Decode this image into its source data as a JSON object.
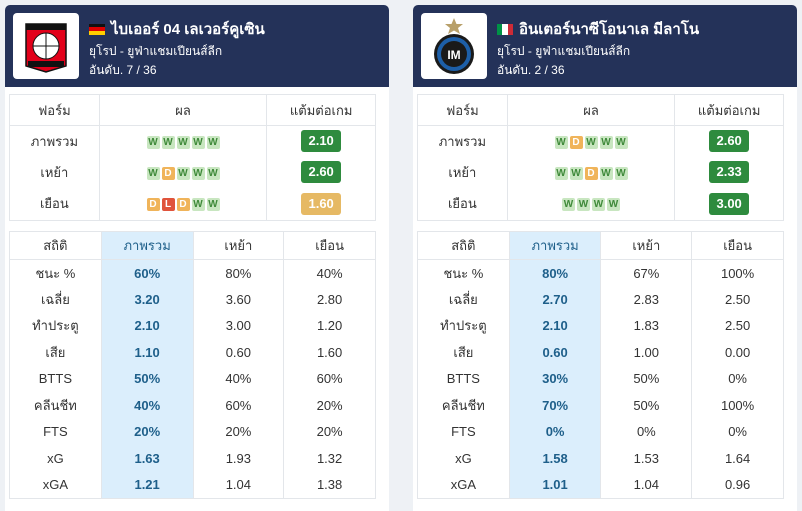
{
  "colors": {
    "header_bg": "#243259",
    "win": "#c8e6c0",
    "draw": "#f0b45a",
    "loss": "#e0533b",
    "ppg_green": "#2e8b3e",
    "ppg_amber": "#e6b964",
    "highlight_col": "#dbeefc"
  },
  "teams": [
    {
      "name": "ไบเออร์ 04 เลเวอร์คูเซิน",
      "flag": "germany-flag-icon",
      "logo": "bayer-leverkusen-crest",
      "league": "ยุโรป - ยูฟ่าแชมเปียนส์ลีก",
      "rank": "อันดับ. 7 / 36",
      "form_headers": {
        "form": "ฟอร์ม",
        "results": "ผล",
        "ppg": "แต้มต่อเกม"
      },
      "form_rows": [
        {
          "label": "ภาพรวม",
          "results": [
            "W",
            "W",
            "W",
            "W",
            "W"
          ],
          "ppg": "2.10",
          "ppg_color": "green"
        },
        {
          "label": "เหย้า",
          "results": [
            "W",
            "D",
            "W",
            "W",
            "W"
          ],
          "ppg": "2.60",
          "ppg_color": "green"
        },
        {
          "label": "เยือน",
          "results": [
            "D",
            "L",
            "D",
            "W",
            "W"
          ],
          "ppg": "1.60",
          "ppg_color": "amber"
        }
      ],
      "stats_headers": {
        "stat": "สถิติ",
        "overall": "ภาพรวม",
        "home": "เหย้า",
        "away": "เยือน"
      },
      "stats": [
        {
          "label": "ชนะ %",
          "overall": "60%",
          "home": "80%",
          "away": "40%"
        },
        {
          "label": "เฉลี่ย",
          "overall": "3.20",
          "home": "3.60",
          "away": "2.80"
        },
        {
          "label": "ทำประตู",
          "overall": "2.10",
          "home": "3.00",
          "away": "1.20"
        },
        {
          "label": "เสีย",
          "overall": "1.10",
          "home": "0.60",
          "away": "1.60"
        },
        {
          "label": "BTTS",
          "overall": "50%",
          "home": "40%",
          "away": "60%"
        },
        {
          "label": "คลีนชีท",
          "overall": "40%",
          "home": "60%",
          "away": "20%"
        },
        {
          "label": "FTS",
          "overall": "20%",
          "home": "20%",
          "away": "20%"
        },
        {
          "label": "xG",
          "overall": "1.63",
          "home": "1.93",
          "away": "1.32"
        },
        {
          "label": "xGA",
          "overall": "1.21",
          "home": "1.04",
          "away": "1.38"
        }
      ]
    },
    {
      "name": "อินเตอร์นาซีโอนาเล มีลาโน",
      "flag": "italy-flag-icon",
      "logo": "inter-milan-crest",
      "league": "ยุโรป - ยูฟ่าแชมเปียนส์ลีก",
      "rank": "อันดับ. 2 / 36",
      "form_headers": {
        "form": "ฟอร์ม",
        "results": "ผล",
        "ppg": "แต้มต่อเกม"
      },
      "form_rows": [
        {
          "label": "ภาพรวม",
          "results": [
            "W",
            "D",
            "W",
            "W",
            "W"
          ],
          "ppg": "2.60",
          "ppg_color": "green"
        },
        {
          "label": "เหย้า",
          "results": [
            "W",
            "W",
            "D",
            "W",
            "W"
          ],
          "ppg": "2.33",
          "ppg_color": "green"
        },
        {
          "label": "เยือน",
          "results": [
            "W",
            "W",
            "W",
            "W"
          ],
          "ppg": "3.00",
          "ppg_color": "green"
        }
      ],
      "stats_headers": {
        "stat": "สถิติ",
        "overall": "ภาพรวม",
        "home": "เหย้า",
        "away": "เยือน"
      },
      "stats": [
        {
          "label": "ชนะ %",
          "overall": "80%",
          "home": "67%",
          "away": "100%"
        },
        {
          "label": "เฉลี่ย",
          "overall": "2.70",
          "home": "2.83",
          "away": "2.50"
        },
        {
          "label": "ทำประตู",
          "overall": "2.10",
          "home": "1.83",
          "away": "2.50"
        },
        {
          "label": "เสีย",
          "overall": "0.60",
          "home": "1.00",
          "away": "0.00"
        },
        {
          "label": "BTTS",
          "overall": "30%",
          "home": "50%",
          "away": "0%"
        },
        {
          "label": "คลีนชีท",
          "overall": "70%",
          "home": "50%",
          "away": "100%"
        },
        {
          "label": "FTS",
          "overall": "0%",
          "home": "0%",
          "away": "0%"
        },
        {
          "label": "xG",
          "overall": "1.58",
          "home": "1.53",
          "away": "1.64"
        },
        {
          "label": "xGA",
          "overall": "1.01",
          "home": "1.04",
          "away": "0.96"
        }
      ]
    }
  ]
}
